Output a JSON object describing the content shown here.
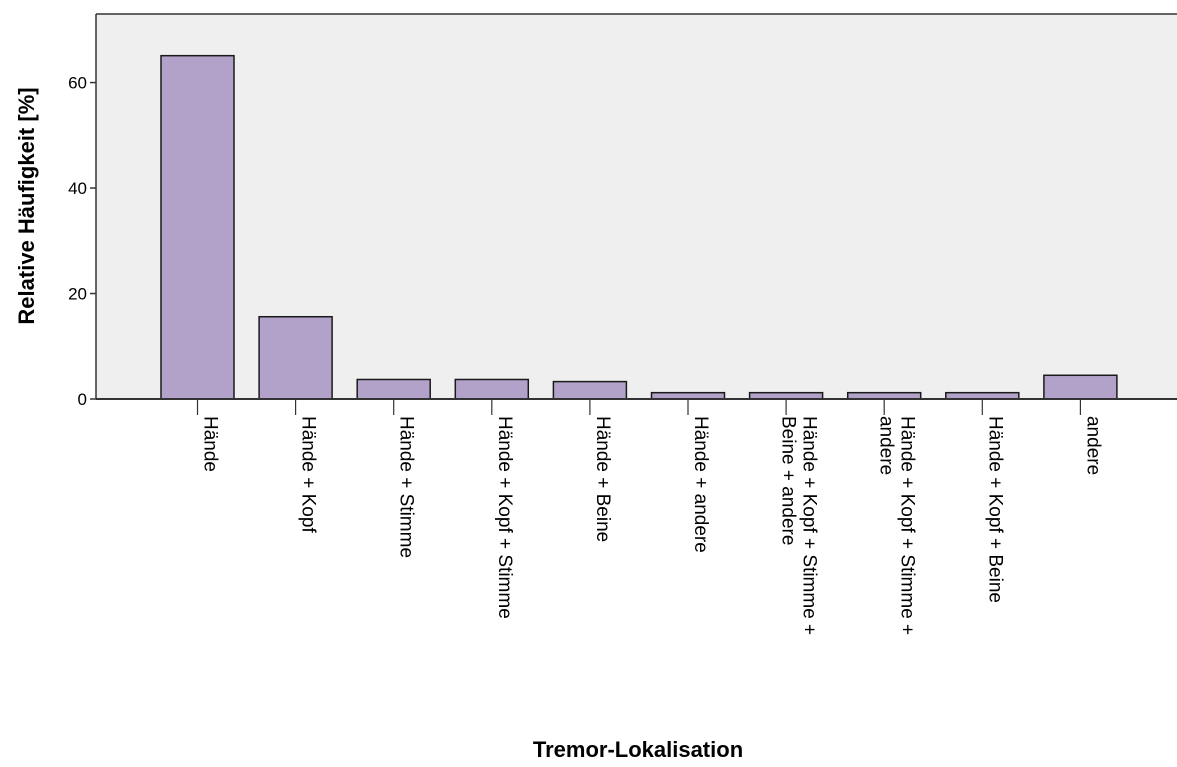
{
  "chart_data": {
    "type": "bar",
    "title": "",
    "xlabel": "Tremor-Lokalisation",
    "ylabel": "Relative Häufigkeit [%]",
    "ylim": [
      0,
      73
    ],
    "yticks": [
      0,
      20,
      40,
      60
    ],
    "grid": false,
    "categories": [
      [
        "Hände"
      ],
      [
        "Hände + Kopf"
      ],
      [
        "Hände + Stimme"
      ],
      [
        "Hände + Kopf + Stimme"
      ],
      [
        "Hände + Beine"
      ],
      [
        "Hände + andere"
      ],
      [
        "Hände + Kopf + Stimme +",
        "Beine + andere"
      ],
      [
        "Hände + Kopf + Stimme +",
        "andere"
      ],
      [
        "Hände + Kopf + Beine"
      ],
      [
        "andere"
      ]
    ],
    "values": [
      65.1,
      15.6,
      3.7,
      3.7,
      3.3,
      1.2,
      1.2,
      1.2,
      1.2,
      4.5
    ],
    "colors": {
      "bar_fill": "#b2a1c8",
      "bar_stroke": "#1a1a1a",
      "plot_background": "#efefef",
      "axis": "#333333"
    }
  }
}
